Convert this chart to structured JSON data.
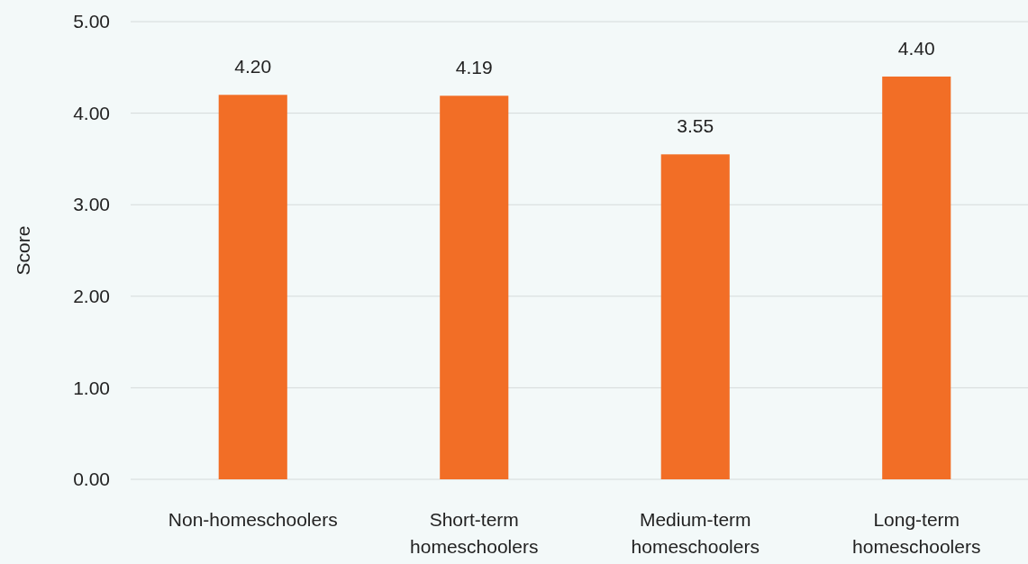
{
  "chart_data": {
    "type": "bar",
    "ylabel": "Score",
    "categories": [
      "Non-homeschoolers",
      "Short-term homeschoolers",
      "Medium-term homeschoolers",
      "Long-term homeschoolers"
    ],
    "values": [
      4.2,
      4.19,
      3.55,
      4.4
    ],
    "value_labels": [
      "4.20",
      "4.19",
      "3.55",
      "4.40"
    ],
    "color": "#f26e26",
    "ylim": [
      0,
      5
    ],
    "yticks": [
      {
        "value": 0,
        "label": "0.00"
      },
      {
        "value": 1,
        "label": "1.00"
      },
      {
        "value": 2,
        "label": "2.00"
      },
      {
        "value": 3,
        "label": "3.00"
      },
      {
        "value": 4,
        "label": "4.00"
      },
      {
        "value": 5,
        "label": "5.00"
      }
    ],
    "grid": "y"
  }
}
